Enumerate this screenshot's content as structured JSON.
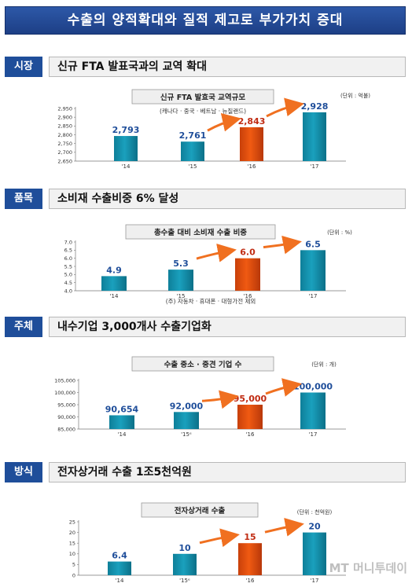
{
  "title": "수출의 양적확대와 질적 제고로 부가가치 증대",
  "watermark": "MT 머니투데이",
  "sections": [
    {
      "tag": "시장",
      "headline": "신규 FTA 발표국과의 교역 확대",
      "chart_box": "신규 FTA 발효국 교역규모",
      "chart_sub": "(캐나다 · 중국 · 베트남 · 뉴질랜드)",
      "unit": "(단위 : 억불)",
      "footnote": "",
      "ytick_labels": [
        "2,950",
        "2,900",
        "2,850",
        "2,800",
        "2,750",
        "2,700",
        "2,650"
      ]
    },
    {
      "tag": "품목",
      "headline": "소비재 수출비중 6% 달성",
      "chart_box": "총수출 대비 소비재 수출 비중",
      "chart_sub": "",
      "unit": "(단위 : %)",
      "footnote": "(주) 자동차 · 휴대폰 · 대형가전 제외",
      "ytick_labels": [
        "7.0",
        "6.5",
        "6.0",
        "5.5",
        "5.0",
        "4.5",
        "4.0"
      ]
    },
    {
      "tag": "주체",
      "headline": "내수기업 3,000개사 수출기업화",
      "chart_box": "수출 중소 · 중견 기업 수",
      "chart_sub": "",
      "unit": "(단위 : 개)",
      "footnote": "",
      "ytick_labels": [
        "105,000",
        "100,000",
        "95,000",
        "90,000",
        "85,000"
      ]
    },
    {
      "tag": "방식",
      "headline": "전자상거래 수출 1조5천억원",
      "chart_box": "전자상거래 수출",
      "chart_sub": "",
      "unit": "(단위 : 천억원)",
      "footnote": "",
      "ytick_labels": [
        "25",
        "20",
        "15",
        "10",
        "5",
        "0"
      ]
    }
  ],
  "chart_data": [
    {
      "type": "bar",
      "title": "신규 FTA 발효국 교역규모",
      "categories": [
        "'14",
        "'15",
        "'16",
        "'17"
      ],
      "values": [
        2793,
        2761,
        2843,
        2928
      ],
      "value_labels": [
        "2,793",
        "2,761",
        "2,843",
        "2,928"
      ],
      "ylim": [
        2650,
        2950
      ],
      "highlight_index": 2,
      "colors": {
        "bar": "#1aa0bd",
        "highlight": "#f05a12",
        "label": "#1f4e9a",
        "highlight_label": "#c02b12",
        "arrow": "#f07020"
      }
    },
    {
      "type": "bar",
      "title": "총수출 대비 소비재 수출 비중",
      "categories": [
        "'14",
        "'15",
        "'16",
        "'17"
      ],
      "values": [
        4.9,
        5.3,
        6.0,
        6.5
      ],
      "value_labels": [
        "4.9",
        "5.3",
        "6.0",
        "6.5"
      ],
      "ylim": [
        4.0,
        7.0
      ],
      "highlight_index": 2,
      "colors": {
        "bar": "#1aa0bd",
        "highlight": "#f05a12",
        "label": "#1f4e9a",
        "highlight_label": "#c02b12",
        "arrow": "#f07020"
      }
    },
    {
      "type": "bar",
      "title": "수출 중소 · 중견 기업 수",
      "categories": [
        "'14",
        "'15ᵉ",
        "'16",
        "'17"
      ],
      "values": [
        90654,
        92000,
        95000,
        100000
      ],
      "value_labels": [
        "90,654",
        "92,000",
        "95,000",
        "100,000"
      ],
      "ylim": [
        85000,
        105000
      ],
      "highlight_index": 2,
      "colors": {
        "bar": "#1aa0bd",
        "highlight": "#f05a12",
        "label": "#1f4e9a",
        "highlight_label": "#c02b12",
        "arrow": "#f07020"
      }
    },
    {
      "type": "bar",
      "title": "전자상거래 수출",
      "categories": [
        "'14",
        "'15ᵉ",
        "'16",
        "'17"
      ],
      "values": [
        6.4,
        10,
        15,
        20
      ],
      "value_labels": [
        "6.4",
        "10",
        "15",
        "20"
      ],
      "ylim": [
        0,
        25
      ],
      "highlight_index": 2,
      "colors": {
        "bar": "#1aa0bd",
        "highlight": "#f05a12",
        "label": "#1f4e9a",
        "highlight_label": "#c02b12",
        "arrow": "#f07020"
      }
    }
  ]
}
